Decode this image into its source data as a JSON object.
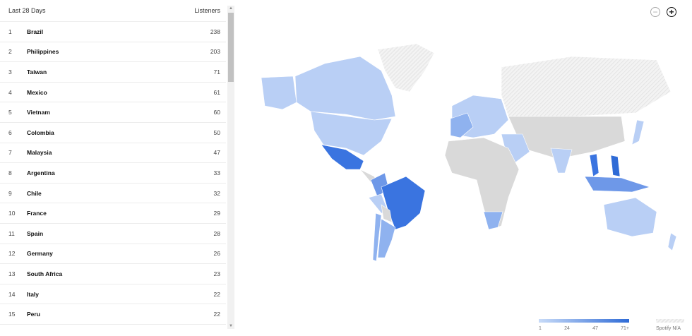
{
  "table": {
    "header": {
      "period": "Last 28 Days",
      "metric": "Listeners"
    },
    "rows": [
      {
        "rank": "1",
        "country": "Brazil",
        "listeners": "238"
      },
      {
        "rank": "2",
        "country": "Philippines",
        "listeners": "203"
      },
      {
        "rank": "3",
        "country": "Taiwan",
        "listeners": "71"
      },
      {
        "rank": "4",
        "country": "Mexico",
        "listeners": "61"
      },
      {
        "rank": "5",
        "country": "Vietnam",
        "listeners": "60"
      },
      {
        "rank": "6",
        "country": "Colombia",
        "listeners": "50"
      },
      {
        "rank": "7",
        "country": "Malaysia",
        "listeners": "47"
      },
      {
        "rank": "8",
        "country": "Argentina",
        "listeners": "33"
      },
      {
        "rank": "9",
        "country": "Chile",
        "listeners": "32"
      },
      {
        "rank": "10",
        "country": "France",
        "listeners": "29"
      },
      {
        "rank": "11",
        "country": "Spain",
        "listeners": "28"
      },
      {
        "rank": "12",
        "country": "Germany",
        "listeners": "26"
      },
      {
        "rank": "13",
        "country": "South Africa",
        "listeners": "23"
      },
      {
        "rank": "14",
        "country": "Italy",
        "listeners": "22"
      },
      {
        "rank": "15",
        "country": "Peru",
        "listeners": "22"
      }
    ]
  },
  "map": {
    "zoom_out_icon": "minus-circle-icon",
    "zoom_in_icon": "plus-circle-icon",
    "colors": {
      "low": "#c8dbf8",
      "mid": "#8fb2ef",
      "high": "#2f6bd6",
      "no_data": "#d9d9d9",
      "na": "#eeeeee"
    },
    "legend": {
      "ticks": [
        "1",
        "24",
        "47",
        "71+"
      ],
      "na_label": "Spotify N/A"
    }
  }
}
